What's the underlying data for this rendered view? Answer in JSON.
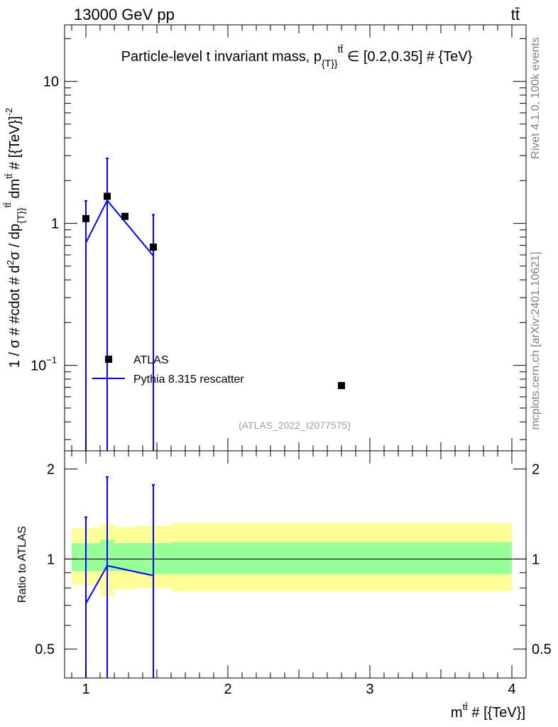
{
  "header": {
    "left": "13000 GeV pp",
    "right": "tt̄"
  },
  "side": {
    "version": "Rivet 4.1.0,  100k events",
    "source": "mcplots.cern.ch [arXiv:2401.10621]"
  },
  "chart_data": [
    {
      "type": "scatter",
      "title": "Particle-level tt̄ invariant mass, p_{T}^{tt̄} ∈ [0.2,0.35] # {TeV}",
      "title_parts": {
        "a": "Particle-level t",
        "b": " invariant mass, p",
        "c": "{T}",
        "d": "}",
        "e": "tt̄",
        "f": " ∈ [0.2,0.35] # {TeV}"
      },
      "ylabel": "1 / σ # #cdot # d²σ / dp_{T}^{tt̄} dm^{tt̄} # [{TeV}]^-2",
      "ylabel_parts": {
        "a": "1 / σ # #cdot # d",
        "b": "2",
        "c": "σ / dp",
        "d": "{T}",
        "e": "}",
        "f": "tt̄",
        "g": " dm",
        "h": "tt̄",
        "i": " # [{TeV}]",
        "j": "-2"
      },
      "ylog": true,
      "ylim": [
        0.025,
        25
      ],
      "xlim": [
        0.85,
        4.1
      ],
      "yticks": [
        {
          "v": 10,
          "label": "10"
        },
        {
          "v": 1,
          "label": "1"
        },
        {
          "v": 0.1,
          "label": "10",
          "exp": "−1"
        }
      ],
      "watermark": "(ATLAS_2022_I2077575)",
      "legend": {
        "placement": "bottom-left",
        "atlas": "ATLAS",
        "pythia": "Pythia 8.315 rescatter"
      },
      "series": [
        {
          "name": "ATLAS",
          "x": [
            1.0,
            1.15,
            1.275,
            1.475,
            2.8
          ],
          "y": [
            1.08,
            1.55,
            1.12,
            0.68,
            0.072
          ],
          "color": "#000000"
        },
        {
          "name": "Pythia 8.315 rescatter",
          "x": [
            1.0,
            1.15,
            1.475
          ],
          "y": [
            0.73,
            1.45,
            0.59
          ],
          "yerr_low": [
            0.73,
            1.45,
            0.59
          ],
          "yerr_high": [
            0.71,
            1.42,
            0.56
          ],
          "color": "#0000ff"
        }
      ]
    },
    {
      "type": "line",
      "ylabel": "Ratio to ATLAS",
      "xlabel": "m^{tt̄} # [{TeV}]",
      "xlabel_parts": {
        "a": "m",
        "b": "tt̄",
        "c": " # [{TeV}]"
      },
      "ylim": [
        0.4,
        2.3
      ],
      "xlim": [
        0.85,
        4.1
      ],
      "xticks": [
        {
          "v": 1,
          "label": "1"
        },
        {
          "v": 2,
          "label": "2"
        },
        {
          "v": 3,
          "label": "3"
        },
        {
          "v": 4,
          "label": "4"
        }
      ],
      "yticks": [
        {
          "v": 0.5,
          "label": "0.5"
        },
        {
          "v": 1,
          "label": "1"
        },
        {
          "v": 2,
          "label": "2"
        }
      ],
      "bands": [
        {
          "x": [
            0.9,
            1.1
          ],
          "outer": [
            0.82,
            1.27
          ],
          "inner": [
            0.91,
            1.13
          ]
        },
        {
          "x": [
            1.1,
            1.2
          ],
          "outer": [
            0.75,
            1.31
          ],
          "inner": [
            0.91,
            1.16
          ]
        },
        {
          "x": [
            1.2,
            1.35
          ],
          "outer": [
            0.79,
            1.28
          ],
          "inner": [
            0.91,
            1.13
          ]
        },
        {
          "x": [
            1.35,
            1.6
          ],
          "outer": [
            0.8,
            1.29
          ],
          "inner": [
            0.89,
            1.13
          ]
        },
        {
          "x": [
            1.6,
            4.0
          ],
          "outer": [
            0.78,
            1.32
          ],
          "inner": [
            0.89,
            1.14
          ]
        }
      ],
      "band_colors": {
        "outer": "#ffff99",
        "inner": "#99ff99"
      },
      "series": [
        {
          "name": "Pythia 8.315 rescatter",
          "x": [
            1.0,
            1.15,
            1.475
          ],
          "y": [
            0.71,
            0.95,
            0.88
          ],
          "yerr_low": [
            0.71,
            0.95,
            0.88
          ],
          "yerr_high": [
            0.67,
            0.93,
            0.89
          ],
          "color": "#0000ff"
        }
      ]
    }
  ]
}
